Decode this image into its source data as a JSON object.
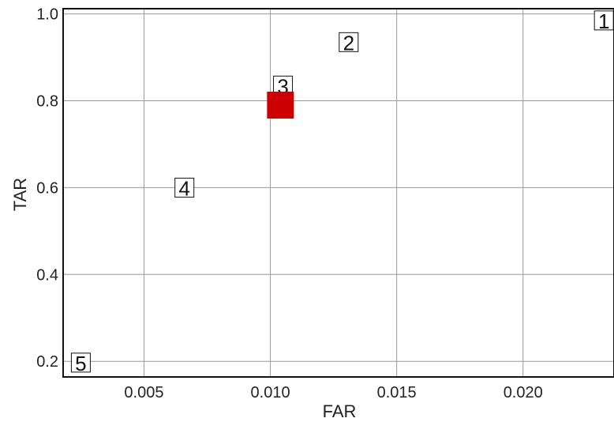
{
  "chart_data": {
    "type": "scatter",
    "title": "",
    "xlabel": "FAR",
    "ylabel": "TAR",
    "xlim": [
      0.0018,
      0.0236
    ],
    "ylim": [
      0.164,
      1.012
    ],
    "grid": true,
    "x_ticks": [
      {
        "value": 0.005,
        "label": "0.005"
      },
      {
        "value": 0.01,
        "label": "0.010"
      },
      {
        "value": 0.015,
        "label": "0.015"
      },
      {
        "value": 0.02,
        "label": "0.020"
      }
    ],
    "y_ticks": [
      {
        "value": 0.2,
        "label": "0.2"
      },
      {
        "value": 0.4,
        "label": "0.4"
      },
      {
        "value": 0.6,
        "label": "0.6"
      },
      {
        "value": 0.8,
        "label": "0.8"
      },
      {
        "value": 1.0,
        "label": "1.0"
      }
    ],
    "points": [
      {
        "label": "1",
        "x": 0.0232,
        "y": 0.985
      },
      {
        "label": "2",
        "x": 0.0131,
        "y": 0.935
      },
      {
        "label": "3",
        "x": 0.0105,
        "y": 0.835
      },
      {
        "label": "4",
        "x": 0.0066,
        "y": 0.6
      },
      {
        "label": "5",
        "x": 0.0025,
        "y": 0.197
      }
    ],
    "highlight": {
      "x": 0.0104,
      "y": 0.79,
      "color": "#cc0000"
    }
  }
}
